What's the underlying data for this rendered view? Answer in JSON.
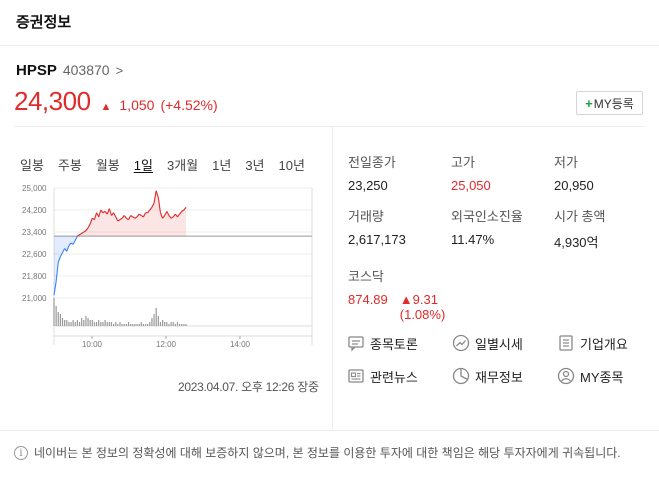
{
  "header": {
    "title": "증권정보"
  },
  "stock": {
    "name": "HPSP",
    "code": "403870",
    "chevron": ">",
    "price": "24,300",
    "up_symbol": "▲",
    "change": "1,050",
    "change_pct": "(+4.52%)",
    "my_button": {
      "plus": "+",
      "label": "MY등록"
    }
  },
  "tabs": [
    "일봉",
    "주봉",
    "월봉",
    "1일",
    "3개월",
    "1년",
    "3년",
    "10년"
  ],
  "active_tab": "1일",
  "chart_data": {
    "type": "line",
    "y_ticks": [
      "25,000",
      "24,200",
      "23,400",
      "22,600",
      "21,800",
      "21,000"
    ],
    "x_ticks": [
      "10:00",
      "12:00",
      "14:00"
    ],
    "ylim": [
      21000,
      25000
    ],
    "baseline": 23250,
    "series": [
      {
        "values": [
          21100,
          21600,
          22300,
          22500,
          22650,
          22800,
          22700,
          22900,
          23000,
          22950,
          23100,
          23250,
          23300,
          23350,
          23400,
          23450,
          23550,
          23700,
          23900,
          23850,
          24100,
          23950,
          24200,
          24100,
          24150,
          24050,
          24250,
          24000,
          24100,
          23950,
          23800,
          23850,
          23900,
          24000,
          23900,
          23850,
          24000,
          23950,
          23900,
          23950,
          24050,
          24000,
          23950,
          24100,
          24100,
          24200,
          24300,
          24450,
          24900,
          24650,
          24100,
          23900,
          24000,
          24150,
          24000,
          23900,
          23950,
          24050,
          23950,
          24050,
          24150,
          24200,
          24300
        ]
      }
    ],
    "volume": [
      14,
      10,
      7,
      6,
      4,
      3,
      3,
      2,
      2,
      3,
      2,
      3,
      2,
      4,
      3,
      5,
      4,
      3,
      3,
      2,
      2,
      3,
      2,
      2,
      3,
      2,
      2,
      2,
      1,
      2,
      1,
      2,
      1,
      1,
      1,
      2,
      1,
      1,
      1,
      1,
      1,
      2,
      1,
      1,
      1,
      2,
      4,
      6,
      9,
      5,
      2,
      3,
      2,
      2,
      1,
      2,
      2,
      1,
      2,
      1,
      1,
      1,
      1
    ],
    "prev_close_label": "23,250"
  },
  "timestamp": "2023.04.07. 오후 12:26 장중",
  "info": [
    {
      "label": "전일종가",
      "value": "23,250",
      "red": false
    },
    {
      "label": "고가",
      "value": "25,050",
      "red": true
    },
    {
      "label": "저가",
      "value": "20,950",
      "red": false
    },
    {
      "label": "거래량",
      "value": "2,617,173",
      "red": false
    },
    {
      "label": "외국인소진율",
      "value": "11.47%",
      "red": false
    },
    {
      "label": "시가 총액",
      "value": "4,930억",
      "red": false
    }
  ],
  "kospi": {
    "label": "코스닥",
    "value": "874.89",
    "change": "▲9.31 (1.08%)"
  },
  "links": [
    {
      "label": "종목토론",
      "icon": "chat-icon"
    },
    {
      "label": "일별시세",
      "icon": "trend-icon"
    },
    {
      "label": "기업개요",
      "icon": "list-icon"
    },
    {
      "label": "관련뉴스",
      "icon": "news-icon"
    },
    {
      "label": "재무정보",
      "icon": "pie-icon"
    },
    {
      "label": "MY종목",
      "icon": "user-icon"
    }
  ],
  "disclaimer": "네이버는 본 정보의 정확성에 대해 보증하지 않으며, 본 정보를 이용한 투자에 대한 책임은 해당 투자자에게 귀속됩니다.",
  "colors": {
    "up": "#e22a2a",
    "down": "#3b82f6",
    "accent": "#19a13a"
  }
}
